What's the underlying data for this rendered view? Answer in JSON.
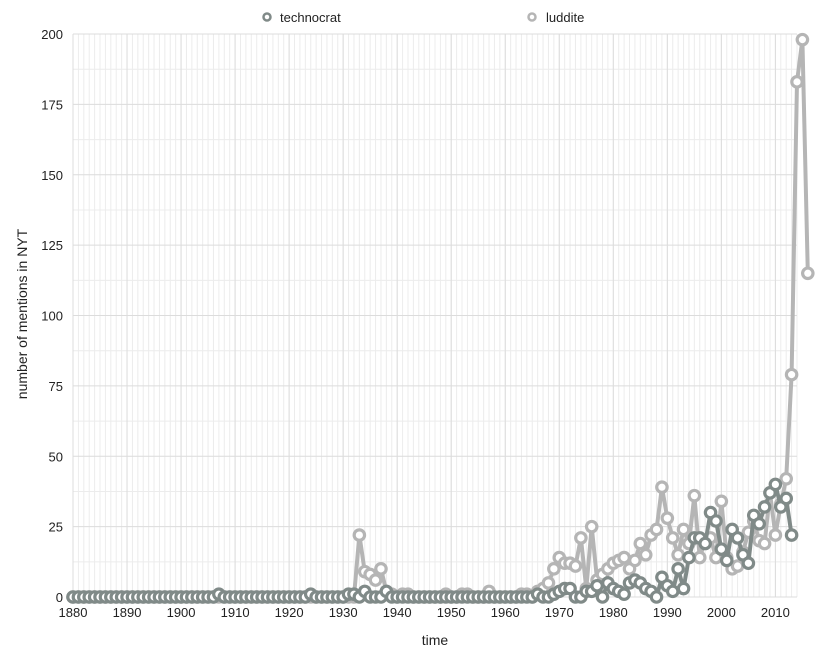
{
  "chart_data": {
    "type": "line",
    "xlabel": "time",
    "ylabel": "number of mentions in NYT",
    "xlim": [
      1880,
      2014
    ],
    "ylim": [
      0,
      200
    ],
    "x_ticks": [
      1880,
      1890,
      1900,
      1910,
      1920,
      1930,
      1940,
      1950,
      1960,
      1970,
      1980,
      1990,
      2000,
      2010
    ],
    "y_ticks": [
      0,
      25,
      50,
      75,
      100,
      125,
      150,
      175,
      200
    ],
    "grid": true,
    "legend_position": "top",
    "x_start": 1880,
    "series": [
      {
        "name": "luddite",
        "color": "#b5b5b5",
        "values": [
          0,
          0,
          0,
          0,
          0,
          0,
          0,
          0,
          0,
          0,
          0,
          0,
          0,
          0,
          0,
          0,
          0,
          0,
          0,
          0,
          0,
          0,
          0,
          0,
          0,
          0,
          0,
          0,
          0,
          0,
          0,
          0,
          0,
          0,
          0,
          0,
          0,
          0,
          0,
          0,
          0,
          0,
          0,
          0,
          0,
          0,
          0,
          0,
          0,
          0,
          0,
          0,
          0,
          22,
          9,
          8,
          6,
          10,
          2,
          1,
          0,
          1,
          1,
          0,
          0,
          0,
          0,
          0,
          0,
          1,
          0,
          0,
          1,
          1,
          0,
          0,
          0,
          2,
          0,
          0,
          0,
          0,
          0,
          1,
          1,
          0,
          2,
          3,
          5,
          10,
          14,
          12,
          12,
          11,
          21,
          3,
          25,
          6,
          8,
          10,
          12,
          13,
          14,
          10,
          13,
          19,
          15,
          22,
          24,
          39,
          28,
          21,
          15,
          24,
          19,
          36,
          14,
          20,
          21,
          14,
          34,
          14,
          10,
          11,
          16,
          23,
          27,
          20,
          19,
          37,
          22,
          33,
          42,
          79,
          183,
          198,
          115
        ]
      },
      {
        "name": "technocrat",
        "color": "#808a88",
        "values": [
          0,
          0,
          0,
          0,
          0,
          0,
          0,
          0,
          0,
          0,
          0,
          0,
          0,
          0,
          0,
          0,
          0,
          0,
          0,
          0,
          0,
          0,
          0,
          0,
          0,
          0,
          0,
          1,
          0,
          0,
          0,
          0,
          0,
          0,
          0,
          0,
          0,
          0,
          0,
          0,
          0,
          0,
          0,
          0,
          1,
          0,
          0,
          0,
          0,
          0,
          0,
          1,
          1,
          0,
          2,
          0,
          0,
          0,
          2,
          0,
          0,
          0,
          0,
          0,
          0,
          0,
          0,
          0,
          0,
          0,
          0,
          0,
          0,
          0,
          0,
          0,
          0,
          0,
          0,
          0,
          0,
          0,
          0,
          0,
          0,
          0,
          1,
          0,
          0,
          1,
          2,
          3,
          3,
          0,
          0,
          2,
          2,
          4,
          0,
          5,
          3,
          2,
          1,
          5,
          6,
          5,
          3,
          2,
          0,
          7,
          4,
          2,
          10,
          3,
          14,
          21,
          21,
          19,
          30,
          27,
          17,
          13,
          24,
          21,
          15,
          12,
          29,
          26,
          32,
          37,
          40,
          32,
          35,
          22
        ]
      }
    ]
  }
}
